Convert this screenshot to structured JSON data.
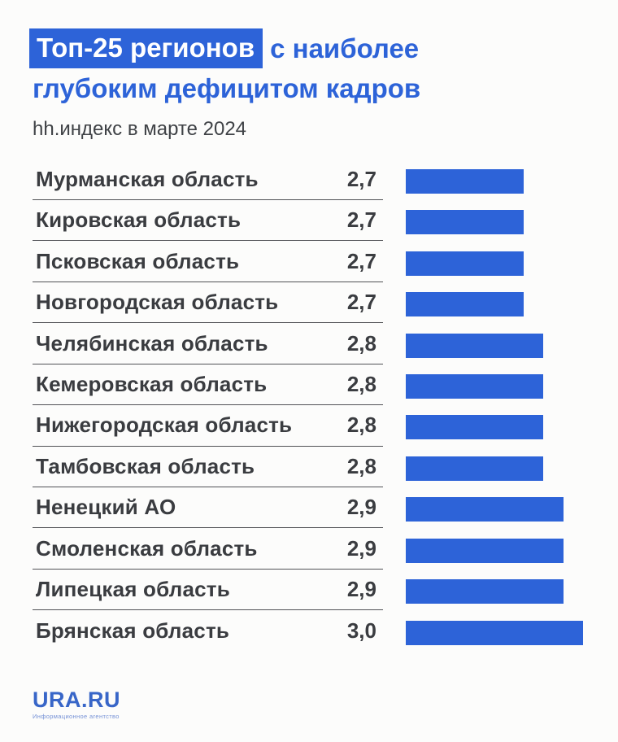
{
  "header": {
    "title_highlight": "Топ-25 регионов",
    "title_rest": "с наиболее",
    "title_line2": "глубоким дефицитом кадров",
    "subtitle": "hh.индекс в марте 2024"
  },
  "chart_data": {
    "type": "bar",
    "orientation": "horizontal",
    "title": "Топ-25 регионов с наиболее глубоким дефицитом кадров",
    "subtitle": "hh.индекс в марте 2024",
    "categories": [
      "Мурманская область",
      "Кировская область",
      "Псковская область",
      "Новгородская область",
      "Челябинская область",
      "Кемеровская область",
      "Нижегородская область",
      "Тамбовская область",
      "Ненецкий АО",
      "Смоленская область",
      "Липецкая область",
      "Брянская область"
    ],
    "values": [
      2.7,
      2.7,
      2.7,
      2.7,
      2.8,
      2.8,
      2.8,
      2.8,
      2.9,
      2.9,
      2.9,
      3.0
    ],
    "value_labels": [
      "2,7",
      "2,7",
      "2,7",
      "2,7",
      "2,8",
      "2,8",
      "2,8",
      "2,8",
      "2,9",
      "2,9",
      "2,9",
      "3,0"
    ],
    "xlim": [
      2.1,
      3.0
    ],
    "grid": false,
    "legend": false,
    "bar_color": "#2d63d8"
  },
  "footer": {
    "brand": "URA.RU",
    "tagline": "Информационное агентство"
  },
  "colors": {
    "accent": "#2d63d8",
    "row_text": "#3a3c40",
    "divider": "#515256",
    "footer_blue": "#3866c8",
    "background": "#fcfcfb"
  }
}
